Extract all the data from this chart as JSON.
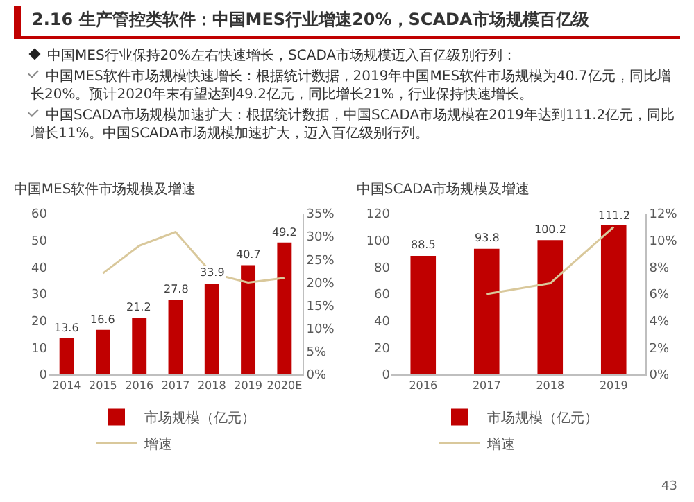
{
  "chart_data": [
    {
      "type": "other",
      "title": "2.16 生产管控类软件：中国MES行业增速20%，SCADA市场规模百亿级",
      "annotations": [
        "中国MES行业保持20%左右快速增长，SCADA市场规模迈入百亿级别行列：",
        "中国MES软件市场规模快速增长：根据统计数据，2019年中国MES软件市场规模为40.7亿元，同比增长20%。预计2020年末有望达到49.2亿元，同比增长21%，行业保持快速增长。",
        "中国SCADA市场规模加速扩大：根据统计数据，中国SCADA市场规模在2019年达到111.2亿元，同比增长11%。中国SCADA市场规模加速扩大，迈入百亿级别行列。",
        "43"
      ]
    },
    {
      "type": "bar",
      "title": "中国MES软件市场规模及增速",
      "categories": [
        "2014",
        "2015",
        "2016",
        "2017",
        "2018",
        "2019",
        "2020E"
      ],
      "ylim": [
        0,
        60
      ],
      "yticks": [
        0,
        10,
        20,
        30,
        40,
        50,
        60
      ],
      "y2lim": [
        0,
        35
      ],
      "y2ticks": [
        {
          "value": 0,
          "label": "0%"
        },
        {
          "value": 5,
          "label": "5%"
        },
        {
          "value": 10,
          "label": "10%"
        },
        {
          "value": 15,
          "label": "15%"
        },
        {
          "value": 20,
          "label": "20%"
        },
        {
          "value": 25,
          "label": "25%"
        },
        {
          "value": 30,
          "label": "30%"
        },
        {
          "value": 35,
          "label": "35%"
        }
      ],
      "legend": "bottom",
      "series": [
        {
          "name": "市场规模（亿元）",
          "color": "#c00000",
          "values": [
            13.6,
            16.6,
            21.2,
            27.8,
            33.9,
            40.7,
            49.2
          ],
          "value_labels": [
            "13.6",
            "16.6",
            "21.2",
            "27.8",
            "33.9",
            "40.7",
            "49.2"
          ]
        },
        {
          "name": "增速",
          "type": "line",
          "axis": "y2",
          "color": "#d9c89b",
          "values": [
            null,
            22,
            28,
            31,
            22,
            20,
            21
          ]
        }
      ]
    },
    {
      "type": "bar",
      "title": "中国SCADA市场规模及增速",
      "categories": [
        "2016",
        "2017",
        "2018",
        "2019"
      ],
      "ylim": [
        0,
        120
      ],
      "yticks": [
        0,
        20,
        40,
        60,
        80,
        100,
        120
      ],
      "y2lim": [
        0,
        12
      ],
      "y2ticks": [
        {
          "value": 0,
          "label": "0%"
        },
        {
          "value": 2,
          "label": "2%"
        },
        {
          "value": 4,
          "label": "4%"
        },
        {
          "value": 6,
          "label": "6%"
        },
        {
          "value": 8,
          "label": "8%"
        },
        {
          "value": 10,
          "label": "10%"
        },
        {
          "value": 12,
          "label": "12%"
        }
      ],
      "legend": "bottom",
      "series": [
        {
          "name": "市场规模（亿元）",
          "color": "#c00000",
          "values": [
            88.5,
            93.8,
            100.2,
            111.2
          ],
          "value_labels": [
            "88.5",
            "93.8",
            "100.2",
            "111.2"
          ]
        },
        {
          "name": "增速",
          "type": "line",
          "axis": "y2",
          "color": "#d9c89b",
          "values": [
            null,
            6,
            6.8,
            11
          ]
        }
      ]
    }
  ]
}
